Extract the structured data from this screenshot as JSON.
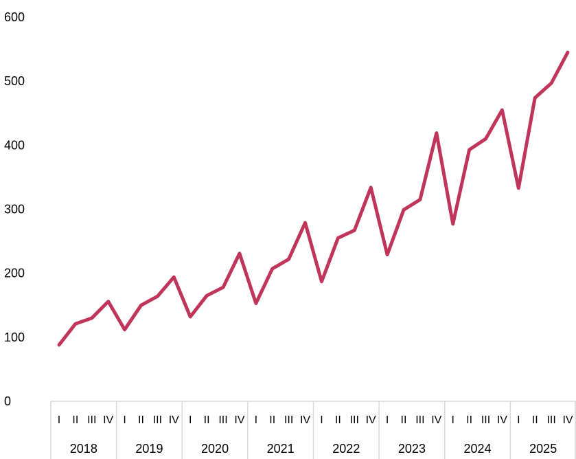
{
  "chart_data": {
    "type": "line",
    "title": "",
    "xlabel": "",
    "ylabel": "",
    "ylim": [
      0,
      600
    ],
    "y_ticks": [
      "0",
      "100",
      "200",
      "300",
      "400",
      "500",
      "600"
    ],
    "grid": false,
    "legend": "none",
    "years": [
      "2018",
      "2019",
      "2020",
      "2021",
      "2022",
      "2023",
      "2024",
      "2025"
    ],
    "quarters": [
      "I",
      "II",
      "III",
      "IV"
    ],
    "series": [
      {
        "color": "#c0355a",
        "values": [
          88,
          121,
          130,
          156,
          112,
          150,
          164,
          194,
          132,
          165,
          178,
          231,
          153,
          207,
          222,
          279,
          187,
          255,
          267,
          334,
          229,
          299,
          315,
          419,
          277,
          393,
          410,
          455,
          333,
          474,
          497,
          545
        ]
      }
    ]
  }
}
